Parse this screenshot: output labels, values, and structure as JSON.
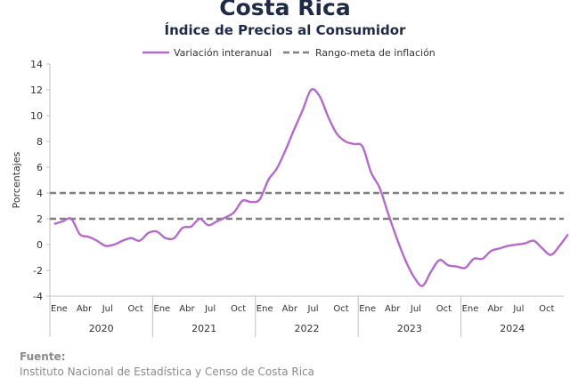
{
  "header": {
    "title": "Costa Rica",
    "subtitle": "Índice de Precios al Consumidor"
  },
  "source": {
    "label": "Fuente:",
    "text": "Instituto Nacional de Estadística y Censo de Costa Rica"
  },
  "chart_data": {
    "type": "line",
    "ylabel": "Porcentajes",
    "ylim": [
      -4,
      14
    ],
    "yticks": [
      -4,
      -2,
      0,
      2,
      4,
      6,
      8,
      10,
      12,
      14
    ],
    "grid": false,
    "legend_position": "top",
    "month_labels": [
      "Ene",
      "Abr",
      "Jul",
      "Oct"
    ],
    "years": [
      "2020",
      "2021",
      "2022",
      "2023",
      "2024"
    ],
    "series": [
      {
        "name": "Variación interanual",
        "color": "#b26bc7",
        "values": [
          1.6,
          1.8,
          2.0,
          0.8,
          0.6,
          0.3,
          -0.1,
          0.0,
          0.3,
          0.5,
          0.3,
          0.9,
          1.0,
          0.5,
          0.5,
          1.3,
          1.4,
          2.0,
          1.5,
          1.8,
          2.1,
          2.5,
          3.4,
          3.3,
          3.5,
          5.0,
          5.9,
          7.3,
          8.9,
          10.4,
          12.0,
          11.5,
          9.9,
          8.6,
          8.0,
          7.8,
          7.6,
          5.6,
          4.4,
          2.4,
          0.5,
          -1.2,
          -2.5,
          -3.2,
          -2.1,
          -1.2,
          -1.6,
          -1.7,
          -1.8,
          -1.1,
          -1.1,
          -0.5,
          -0.3,
          -0.1,
          0.0,
          0.1,
          0.3,
          -0.3,
          -0.8,
          -0.1,
          0.8
        ]
      },
      {
        "name": "Rango-meta de inflación",
        "color": "#7f7f7f",
        "style": "dashed",
        "values": [
          2,
          4
        ]
      }
    ]
  }
}
